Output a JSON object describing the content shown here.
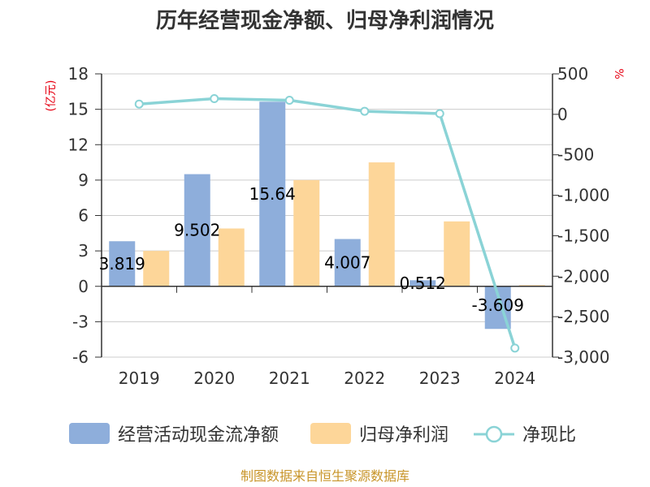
{
  "title": "历年经营现金净额、归母净利润情况",
  "left_unit": "(亿元)",
  "right_unit": "%",
  "source": "制图数据来自恒生聚源数据库",
  "colors": {
    "cash_flow": "#8eaedb",
    "net_profit": "#fdd699",
    "ratio": "#8ad3d6",
    "axis": "#333333",
    "grid": "#cccccc",
    "unit_label": "#e60012",
    "source": "#c8952a"
  },
  "chart_data": {
    "type": "bar",
    "title": "历年经营现金净额、归母净利润情况",
    "categories": [
      "2019",
      "2020",
      "2021",
      "2022",
      "2023",
      "2024"
    ],
    "y_left": {
      "label": "(亿元)",
      "ylim": [
        -6,
        18
      ],
      "ticks": [
        "-6",
        "-3",
        "0",
        "3",
        "6",
        "9",
        "12",
        "15",
        "18"
      ]
    },
    "y_right": {
      "label": "%",
      "ylim": [
        -3000,
        500
      ],
      "ticks": [
        "-3,000",
        "-2,500",
        "-2,000",
        "-1,500",
        "-1,000",
        "-500",
        "0",
        "500"
      ]
    },
    "series": [
      {
        "name": "经营活动现金流净额",
        "type": "bar",
        "axis": "left",
        "values": [
          3.819,
          9.502,
          15.64,
          4.007,
          0.512,
          -3.609
        ],
        "labels": [
          "3.819",
          "9.502",
          "15.64",
          "4.007",
          "0.512",
          "-3.609"
        ]
      },
      {
        "name": "归母净利润",
        "type": "bar",
        "axis": "left",
        "values": [
          3.0,
          4.9,
          9.0,
          10.5,
          5.5,
          0.1
        ]
      },
      {
        "name": "净现比",
        "type": "line",
        "axis": "right",
        "values": [
          127,
          194,
          174,
          38,
          9,
          -2888
        ]
      }
    ],
    "grid": true,
    "legend_position": "bottom"
  }
}
